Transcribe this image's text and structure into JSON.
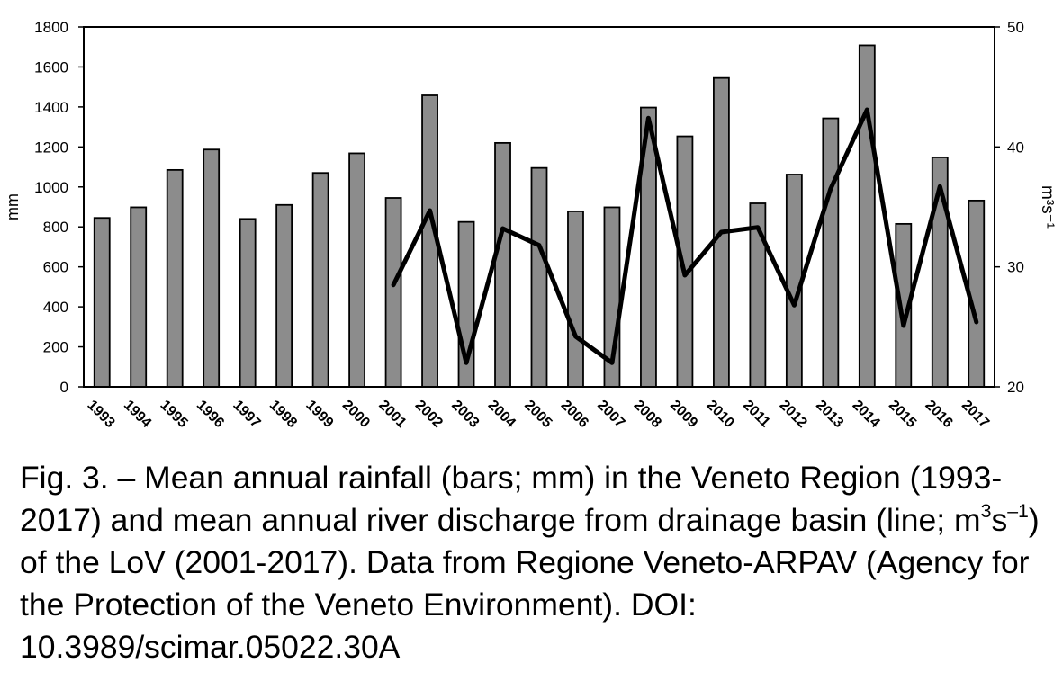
{
  "chart_data": {
    "type": "bar",
    "categories": [
      "1993",
      "1994",
      "1995",
      "1996",
      "1997",
      "1998",
      "1999",
      "2000",
      "2001",
      "2002",
      "2003",
      "2004",
      "2005",
      "2006",
      "2007",
      "2008",
      "2009",
      "2010",
      "2011",
      "2012",
      "2013",
      "2014",
      "2015",
      "2016",
      "2017"
    ],
    "series": [
      {
        "type": "bar",
        "axis": "left",
        "values": [
          845,
          898,
          1085,
          1187,
          840,
          910,
          1070,
          1168,
          945,
          1458,
          825,
          1220,
          1095,
          878,
          898,
          1397,
          1253,
          1545,
          918,
          1062,
          1343,
          1708,
          815,
          1148,
          932
        ],
        "color": "#8c8c8c"
      },
      {
        "type": "line",
        "axis": "right",
        "values": [
          null,
          null,
          null,
          null,
          null,
          null,
          null,
          null,
          28.5,
          34.7,
          22.0,
          33.2,
          31.8,
          24.2,
          22.0,
          42.4,
          29.3,
          32.9,
          33.3,
          26.8,
          36.5,
          43.1,
          25.1,
          36.7,
          25.4
        ],
        "color": "#000000"
      }
    ],
    "y_left": {
      "label": "mm",
      "range": [
        0,
        1800
      ],
      "ticks": [
        "0",
        "200",
        "400",
        "600",
        "800",
        "1000",
        "1200",
        "1400",
        "1600",
        "1800"
      ]
    },
    "y_right": {
      "label": "m³s⁻¹",
      "range": [
        20,
        50
      ],
      "ticks": [
        "20",
        "30",
        "40",
        "50"
      ]
    },
    "grid": false,
    "legend": "none"
  },
  "caption": {
    "prefix": "Fig. 3. – Mean annual rainfall (bars; mm) in the Veneto Region (1993-2017) and mean annual river discharge from drainage basin (line; m",
    "sup1": "3",
    "mid": "s",
    "sup2": "–1",
    "suffix": ") of the LoV (2001-2017). Data from Regione Veneto-ARPAV (Agency for the Protection of the Veneto Environment). DOI: 10.3989/scimar.05022.30A"
  }
}
